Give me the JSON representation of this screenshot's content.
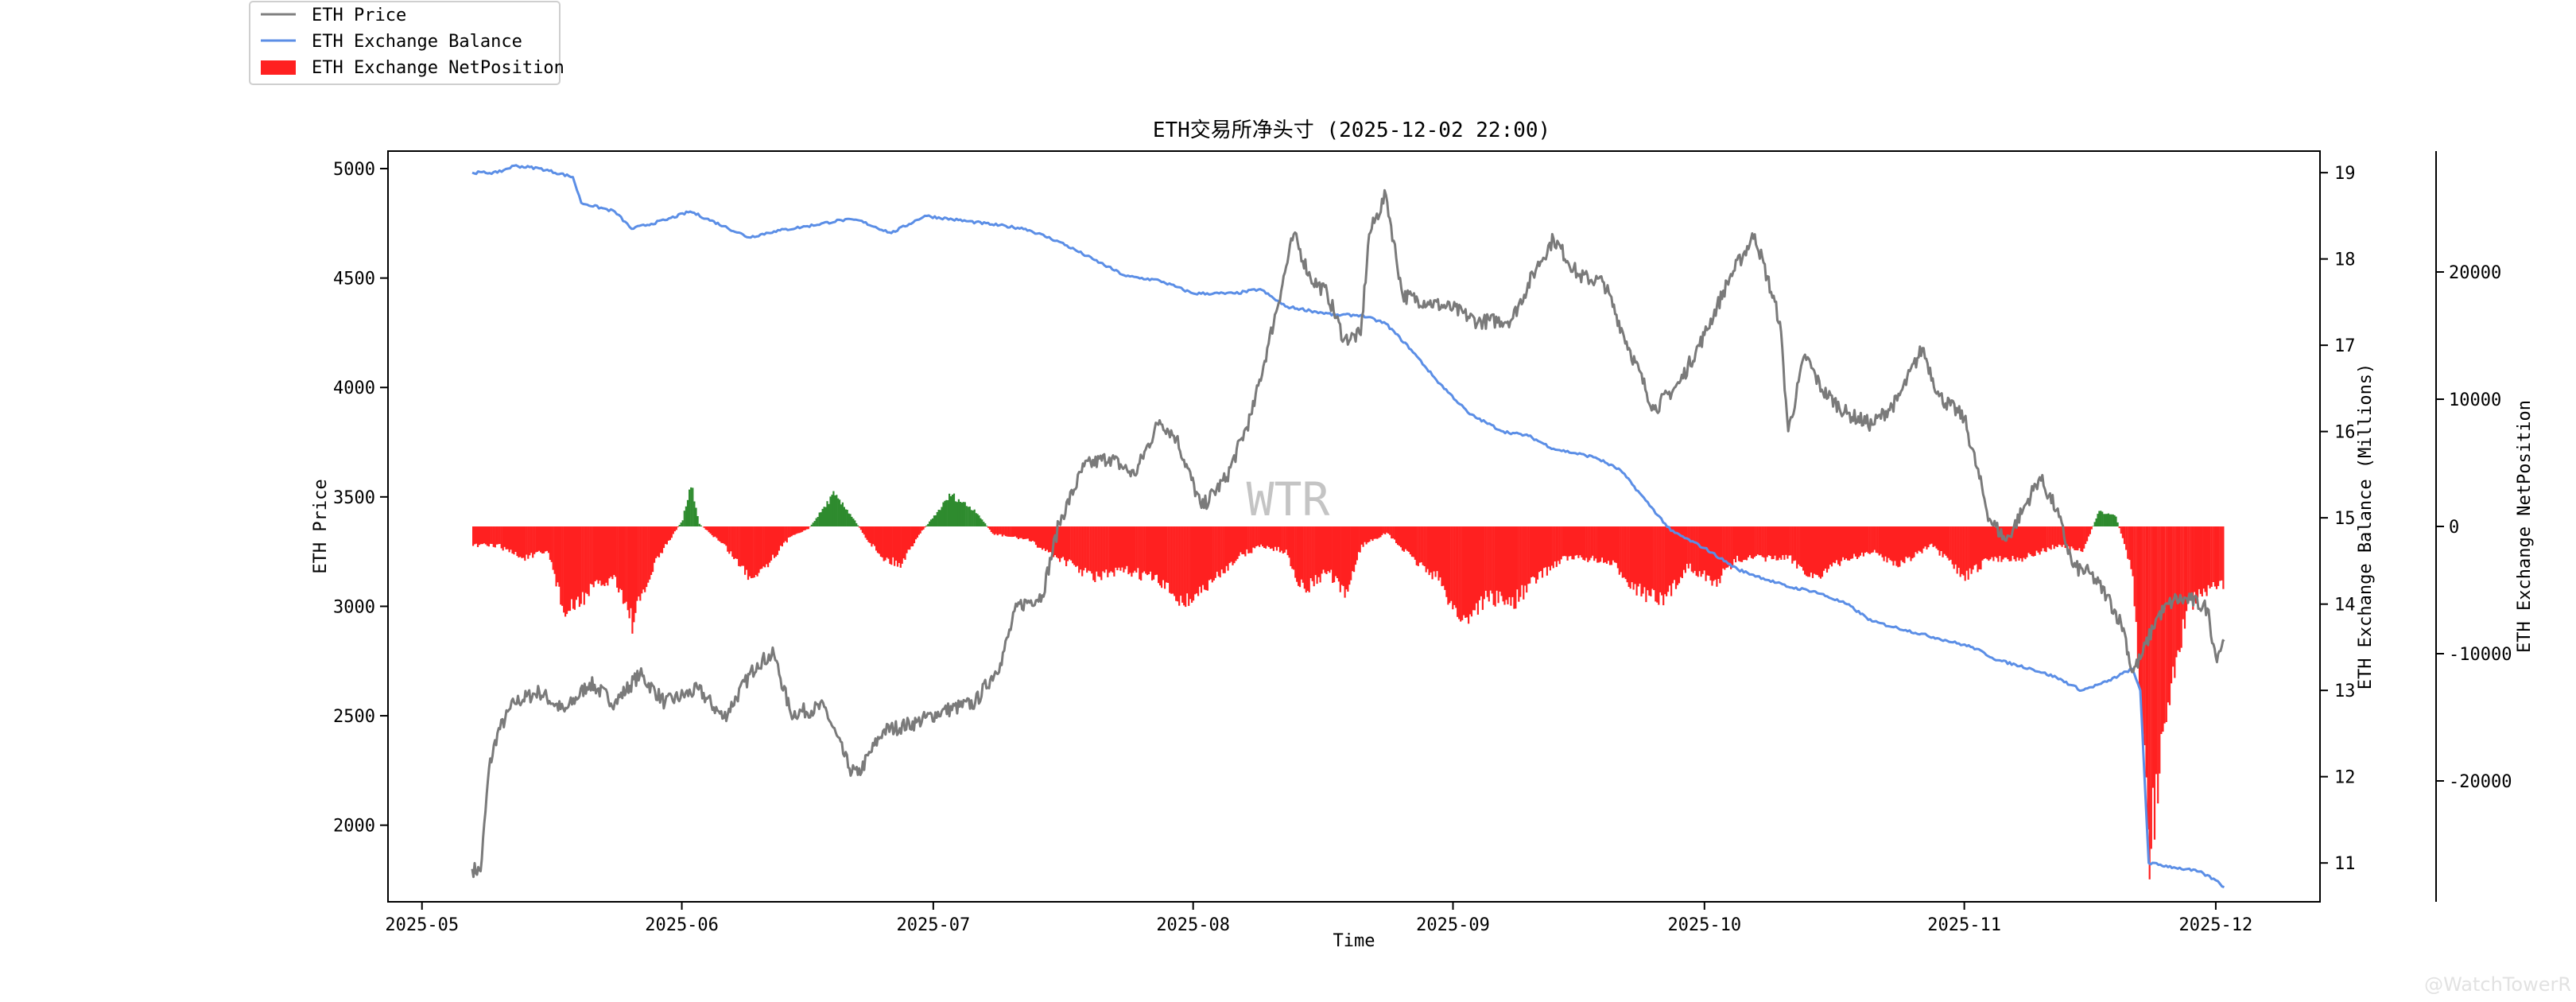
{
  "chart_data": {
    "type": "line",
    "title": "ETH交易所净头寸 (2025-12-02 22:00)",
    "xlabel": "Time",
    "x_tick_labels": [
      "2025-05",
      "2025-06",
      "2025-07",
      "2025-08",
      "2025-09",
      "2025-10",
      "2025-11",
      "2025-12"
    ],
    "x_range": [
      "2025-05-07",
      "2025-12-03"
    ],
    "y_left": {
      "label": "ETH Price",
      "range": [
        1650,
        5080
      ],
      "ticks": [
        2000,
        2500,
        3000,
        3500,
        4000,
        4500,
        5000
      ]
    },
    "y_right": {
      "label": "ETH Exchange Balance (Millions)",
      "range": [
        10.55,
        19.25
      ],
      "ticks": [
        11,
        12,
        13,
        14,
        15,
        16,
        17,
        18,
        19
      ]
    },
    "y_far_right": {
      "label": "ETH Exchange NetPosition",
      "range": [
        -29500,
        29500
      ],
      "ticks": [
        -20000,
        -10000,
        0,
        10000,
        20000
      ]
    },
    "legend": {
      "placement": "top-left",
      "entries": [
        "ETH Price",
        "ETH Exchange Balance",
        "ETH Exchange NetPosition"
      ]
    },
    "watermark": "WTR",
    "credit": "@WatchTowerR",
    "grid": false,
    "colors": {
      "price": "#808080",
      "balance": "#5b8ee6",
      "net_negative": "#ff2020",
      "net_positive": "#2e8b2e"
    },
    "series": [
      {
        "name": "ETH Price",
        "axis": "left",
        "points": [
          [
            "2025-05-07",
            1800
          ],
          [
            "2025-05-08",
            1790
          ],
          [
            "2025-05-09",
            2260
          ],
          [
            "2025-05-10",
            2420
          ],
          [
            "2025-05-12",
            2560
          ],
          [
            "2025-05-15",
            2610
          ],
          [
            "2025-05-18",
            2520
          ],
          [
            "2025-05-21",
            2650
          ],
          [
            "2025-05-24",
            2560
          ],
          [
            "2025-05-27",
            2690
          ],
          [
            "2025-05-30",
            2560
          ],
          [
            "2025-06-03",
            2620
          ],
          [
            "2025-06-06",
            2490
          ],
          [
            "2025-06-10",
            2740
          ],
          [
            "2025-06-12",
            2780
          ],
          [
            "2025-06-14",
            2510
          ],
          [
            "2025-06-18",
            2540
          ],
          [
            "2025-06-21",
            2260
          ],
          [
            "2025-06-22",
            2230
          ],
          [
            "2025-06-25",
            2430
          ],
          [
            "2025-06-29",
            2470
          ],
          [
            "2025-07-02",
            2520
          ],
          [
            "2025-07-06",
            2560
          ],
          [
            "2025-07-09",
            2740
          ],
          [
            "2025-07-11",
            3000
          ],
          [
            "2025-07-14",
            3050
          ],
          [
            "2025-07-16",
            3380
          ],
          [
            "2025-07-19",
            3640
          ],
          [
            "2025-07-22",
            3680
          ],
          [
            "2025-07-25",
            3600
          ],
          [
            "2025-07-28",
            3850
          ],
          [
            "2025-07-30",
            3770
          ],
          [
            "2025-08-02",
            3450
          ],
          [
            "2025-08-05",
            3590
          ],
          [
            "2025-08-08",
            3880
          ],
          [
            "2025-08-10",
            4200
          ],
          [
            "2025-08-13",
            4700
          ],
          [
            "2025-08-15",
            4500
          ],
          [
            "2025-08-17",
            4430
          ],
          [
            "2025-08-19",
            4220
          ],
          [
            "2025-08-21",
            4240
          ],
          [
            "2025-08-22",
            4700
          ],
          [
            "2025-08-24",
            4880
          ],
          [
            "2025-08-26",
            4420
          ],
          [
            "2025-08-29",
            4390
          ],
          [
            "2025-09-01",
            4360
          ],
          [
            "2025-09-04",
            4300
          ],
          [
            "2025-09-08",
            4310
          ],
          [
            "2025-09-11",
            4550
          ],
          [
            "2025-09-13",
            4680
          ],
          [
            "2025-09-16",
            4510
          ],
          [
            "2025-09-19",
            4480
          ],
          [
            "2025-09-22",
            4180
          ],
          [
            "2025-09-25",
            3900
          ],
          [
            "2025-09-28",
            4020
          ],
          [
            "2025-10-01",
            4240
          ],
          [
            "2025-10-04",
            4500
          ],
          [
            "2025-10-07",
            4700
          ],
          [
            "2025-10-10",
            4300
          ],
          [
            "2025-10-11",
            3800
          ],
          [
            "2025-10-13",
            4150
          ],
          [
            "2025-10-15",
            3990
          ],
          [
            "2025-10-18",
            3880
          ],
          [
            "2025-10-21",
            3830
          ],
          [
            "2025-10-24",
            3940
          ],
          [
            "2025-10-27",
            4180
          ],
          [
            "2025-10-29",
            3960
          ],
          [
            "2025-11-01",
            3860
          ],
          [
            "2025-11-04",
            3400
          ],
          [
            "2025-11-06",
            3300
          ],
          [
            "2025-11-08",
            3440
          ],
          [
            "2025-11-10",
            3590
          ],
          [
            "2025-11-12",
            3440
          ],
          [
            "2025-11-14",
            3180
          ],
          [
            "2025-11-16",
            3150
          ],
          [
            "2025-11-18",
            3050
          ],
          [
            "2025-11-20",
            2900
          ],
          [
            "2025-11-21",
            2700
          ],
          [
            "2025-11-22",
            2760
          ],
          [
            "2025-11-24",
            2950
          ],
          [
            "2025-11-26",
            3030
          ],
          [
            "2025-11-28",
            3030
          ],
          [
            "2025-11-30",
            2990
          ],
          [
            "2025-12-01",
            2770
          ],
          [
            "2025-12-02",
            2840
          ]
        ]
      },
      {
        "name": "ETH Exchange Balance",
        "axis": "right",
        "points": [
          [
            "2025-05-07",
            19.0
          ],
          [
            "2025-05-10",
            19.0
          ],
          [
            "2025-05-12",
            19.08
          ],
          [
            "2025-05-15",
            19.05
          ],
          [
            "2025-05-19",
            18.95
          ],
          [
            "2025-05-20",
            18.65
          ],
          [
            "2025-05-24",
            18.55
          ],
          [
            "2025-05-26",
            18.35
          ],
          [
            "2025-05-30",
            18.45
          ],
          [
            "2025-06-02",
            18.55
          ],
          [
            "2025-06-06",
            18.38
          ],
          [
            "2025-06-09",
            18.25
          ],
          [
            "2025-06-12",
            18.32
          ],
          [
            "2025-06-16",
            18.38
          ],
          [
            "2025-06-20",
            18.45
          ],
          [
            "2025-06-22",
            18.45
          ],
          [
            "2025-06-26",
            18.3
          ],
          [
            "2025-06-30",
            18.5
          ],
          [
            "2025-07-04",
            18.45
          ],
          [
            "2025-07-08",
            18.4
          ],
          [
            "2025-07-12",
            18.35
          ],
          [
            "2025-07-16",
            18.2
          ],
          [
            "2025-07-20",
            18.0
          ],
          [
            "2025-07-24",
            17.8
          ],
          [
            "2025-07-28",
            17.75
          ],
          [
            "2025-08-01",
            17.6
          ],
          [
            "2025-08-06",
            17.6
          ],
          [
            "2025-08-09",
            17.65
          ],
          [
            "2025-08-12",
            17.45
          ],
          [
            "2025-08-15",
            17.4
          ],
          [
            "2025-08-18",
            17.35
          ],
          [
            "2025-08-21",
            17.35
          ],
          [
            "2025-08-24",
            17.25
          ],
          [
            "2025-08-27",
            16.95
          ],
          [
            "2025-08-30",
            16.6
          ],
          [
            "2025-09-03",
            16.2
          ],
          [
            "2025-09-07",
            16.0
          ],
          [
            "2025-09-10",
            15.95
          ],
          [
            "2025-09-13",
            15.8
          ],
          [
            "2025-09-18",
            15.7
          ],
          [
            "2025-09-21",
            15.55
          ],
          [
            "2025-09-24",
            15.2
          ],
          [
            "2025-09-27",
            14.85
          ],
          [
            "2025-10-01",
            14.65
          ],
          [
            "2025-10-05",
            14.4
          ],
          [
            "2025-10-08",
            14.3
          ],
          [
            "2025-10-11",
            14.2
          ],
          [
            "2025-10-14",
            14.15
          ],
          [
            "2025-10-18",
            14.0
          ],
          [
            "2025-10-21",
            13.8
          ],
          [
            "2025-10-25",
            13.7
          ],
          [
            "2025-10-29",
            13.6
          ],
          [
            "2025-11-02",
            13.5
          ],
          [
            "2025-11-05",
            13.35
          ],
          [
            "2025-11-09",
            13.25
          ],
          [
            "2025-11-12",
            13.15
          ],
          [
            "2025-11-15",
            13.0
          ],
          [
            "2025-11-18",
            13.1
          ],
          [
            "2025-11-21",
            13.25
          ],
          [
            "2025-11-22",
            13.0
          ],
          [
            "2025-11-23",
            11.0
          ],
          [
            "2025-11-26",
            10.95
          ],
          [
            "2025-11-29",
            10.9
          ],
          [
            "2025-12-01",
            10.8
          ],
          [
            "2025-12-02",
            10.72
          ]
        ]
      },
      {
        "name": "ETH Exchange NetPosition",
        "axis": "far_right",
        "type": "bar",
        "points": [
          [
            "2025-05-07",
            -1500
          ],
          [
            "2025-05-10",
            -1500
          ],
          [
            "2025-05-13",
            -2500
          ],
          [
            "2025-05-16",
            -2000
          ],
          [
            "2025-05-18",
            -7000
          ],
          [
            "2025-05-21",
            -5000
          ],
          [
            "2025-05-24",
            -4000
          ],
          [
            "2025-05-26",
            -7500
          ],
          [
            "2025-05-29",
            -2500
          ],
          [
            "2025-06-01",
            500
          ],
          [
            "2025-06-02",
            3500
          ],
          [
            "2025-06-03",
            200
          ],
          [
            "2025-06-06",
            -1500
          ],
          [
            "2025-06-09",
            -4000
          ],
          [
            "2025-06-11",
            -3000
          ],
          [
            "2025-06-14",
            -700
          ],
          [
            "2025-06-16",
            -200
          ],
          [
            "2025-06-19",
            2500
          ],
          [
            "2025-06-21",
            1000
          ],
          [
            "2025-06-23",
            -1000
          ],
          [
            "2025-06-25",
            -2500
          ],
          [
            "2025-06-27",
            -3000
          ],
          [
            "2025-06-29",
            -800
          ],
          [
            "2025-07-01",
            800
          ],
          [
            "2025-07-03",
            2500
          ],
          [
            "2025-07-06",
            1200
          ],
          [
            "2025-07-08",
            -600
          ],
          [
            "2025-07-12",
            -1000
          ],
          [
            "2025-07-16",
            -2500
          ],
          [
            "2025-07-20",
            -4000
          ],
          [
            "2025-07-24",
            -3500
          ],
          [
            "2025-07-27",
            -4000
          ],
          [
            "2025-07-31",
            -6000
          ],
          [
            "2025-08-03",
            -4500
          ],
          [
            "2025-08-06",
            -2500
          ],
          [
            "2025-08-09",
            -1500
          ],
          [
            "2025-08-12",
            -2000
          ],
          [
            "2025-08-14",
            -5000
          ],
          [
            "2025-08-17",
            -3500
          ],
          [
            "2025-08-19",
            -5500
          ],
          [
            "2025-08-21",
            -1500
          ],
          [
            "2025-08-24",
            -500
          ],
          [
            "2025-08-27",
            -2500
          ],
          [
            "2025-08-30",
            -4000
          ],
          [
            "2025-09-02",
            -7500
          ],
          [
            "2025-09-05",
            -5500
          ],
          [
            "2025-09-08",
            -6000
          ],
          [
            "2025-09-11",
            -4000
          ],
          [
            "2025-09-14",
            -2500
          ],
          [
            "2025-09-17",
            -2500
          ],
          [
            "2025-09-20",
            -3000
          ],
          [
            "2025-09-23",
            -5000
          ],
          [
            "2025-09-26",
            -6000
          ],
          [
            "2025-09-29",
            -3000
          ],
          [
            "2025-10-02",
            -4500
          ],
          [
            "2025-10-05",
            -2500
          ],
          [
            "2025-10-08",
            -2500
          ],
          [
            "2025-10-11",
            -2500
          ],
          [
            "2025-10-14",
            -4000
          ],
          [
            "2025-10-18",
            -2500
          ],
          [
            "2025-10-21",
            -2000
          ],
          [
            "2025-10-24",
            -3000
          ],
          [
            "2025-10-28",
            -1500
          ],
          [
            "2025-11-01",
            -4000
          ],
          [
            "2025-11-04",
            -2500
          ],
          [
            "2025-11-08",
            -2500
          ],
          [
            "2025-11-12",
            -1500
          ],
          [
            "2025-11-15",
            -2000
          ],
          [
            "2025-11-17",
            1200
          ],
          [
            "2025-11-19",
            800
          ],
          [
            "2025-11-20",
            -1500
          ],
          [
            "2025-11-21",
            -4000
          ],
          [
            "2025-11-22",
            -14000
          ],
          [
            "2025-11-23",
            -25000
          ],
          [
            "2025-11-24",
            -20000
          ],
          [
            "2025-11-25",
            -15000
          ],
          [
            "2025-11-26",
            -11000
          ],
          [
            "2025-11-27",
            -8000
          ],
          [
            "2025-11-28",
            -6000
          ],
          [
            "2025-11-30",
            -5000
          ],
          [
            "2025-12-01",
            -5000
          ],
          [
            "2025-12-02",
            -4500
          ]
        ]
      }
    ]
  }
}
